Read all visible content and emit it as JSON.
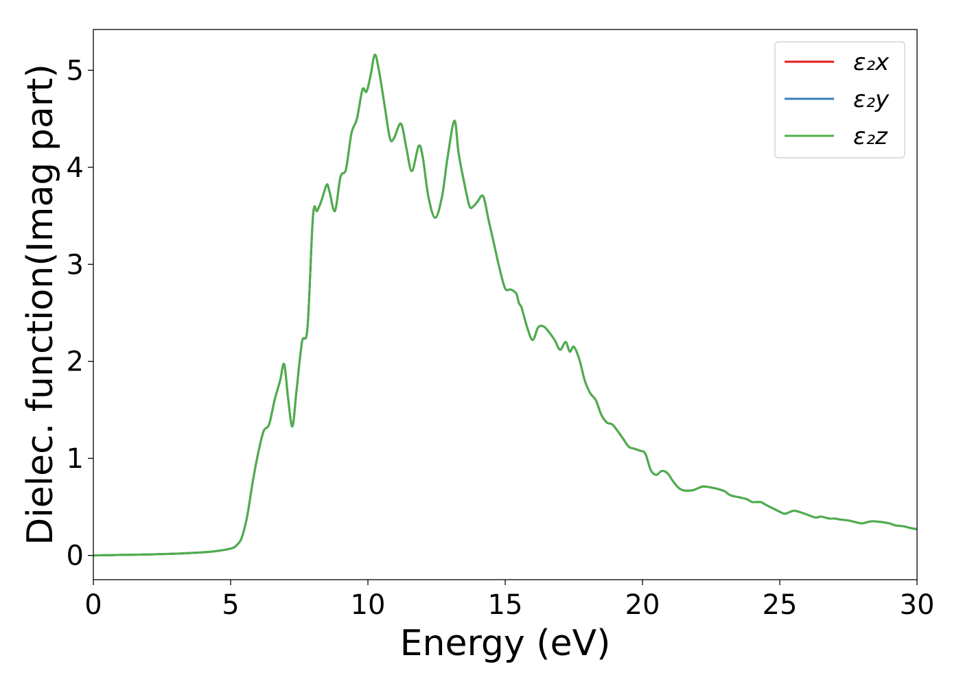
{
  "chart_data": {
    "type": "line",
    "title": "",
    "xlabel": "Energy (eV)",
    "ylabel": "Dielec. function(Imag part)",
    "xlim": [
      0,
      30
    ],
    "ylim": [
      -0.25,
      5.42
    ],
    "xticks": [
      0,
      5,
      10,
      15,
      20,
      25,
      30
    ],
    "yticks": [
      0,
      1,
      2,
      3,
      4,
      5
    ],
    "xtick_labels": [
      "0",
      "5",
      "10",
      "15",
      "20",
      "25",
      "30"
    ],
    "ytick_labels": [
      "0",
      "1",
      "2",
      "3",
      "4",
      "5"
    ],
    "grid": false,
    "legend_position": "top-right",
    "x": [
      0,
      1,
      2,
      3,
      4,
      4.5,
      5,
      5.2,
      5.4,
      5.6,
      5.8,
      6.0,
      6.2,
      6.4,
      6.6,
      6.8,
      6.95,
      7.1,
      7.25,
      7.4,
      7.6,
      7.8,
      8.0,
      8.15,
      8.3,
      8.5,
      8.6,
      8.8,
      9.0,
      9.2,
      9.4,
      9.6,
      9.8,
      9.95,
      10.1,
      10.25,
      10.4,
      10.6,
      10.8,
      10.95,
      11.2,
      11.4,
      11.6,
      11.85,
      12.0,
      12.2,
      12.45,
      12.7,
      12.9,
      13.15,
      13.3,
      13.5,
      13.7,
      13.85,
      14.0,
      14.2,
      14.4,
      14.6,
      14.8,
      15.0,
      15.2,
      15.4,
      15.5,
      15.6,
      15.8,
      16.0,
      16.2,
      16.4,
      16.6,
      16.8,
      17.0,
      17.2,
      17.35,
      17.5,
      17.7,
      17.9,
      18.1,
      18.3,
      18.5,
      18.7,
      18.9,
      19.1,
      19.3,
      19.5,
      19.7,
      19.9,
      20.1,
      20.3,
      20.5,
      20.7,
      20.9,
      21.1,
      21.3,
      21.5,
      21.8,
      22.0,
      22.2,
      22.5,
      22.8,
      23.0,
      23.2,
      23.5,
      23.8,
      24.0,
      24.3,
      24.5,
      25.0,
      25.2,
      25.5,
      25.8,
      26.0,
      26.3,
      26.5,
      26.8,
      27.0,
      27.2,
      27.5,
      27.8,
      28.0,
      28.3,
      28.5,
      28.8,
      29.0,
      29.2,
      29.5,
      29.8,
      30.0
    ],
    "series": [
      {
        "name": "ε₂x",
        "color": "#e41a1c"
      },
      {
        "name": "ε₂y",
        "color": "#377eb8"
      },
      {
        "name": "ε₂z",
        "color": "#4daf4a"
      }
    ],
    "values": [
      0.0,
      0.005,
      0.01,
      0.018,
      0.032,
      0.045,
      0.07,
      0.1,
      0.18,
      0.4,
      0.75,
      1.05,
      1.28,
      1.35,
      1.6,
      1.8,
      1.97,
      1.6,
      1.33,
      1.7,
      2.2,
      2.35,
      3.5,
      3.55,
      3.65,
      3.82,
      3.75,
      3.55,
      3.9,
      3.98,
      4.35,
      4.5,
      4.8,
      4.78,
      4.95,
      5.16,
      5.0,
      4.65,
      4.3,
      4.3,
      4.45,
      4.2,
      3.96,
      4.22,
      4.1,
      3.7,
      3.48,
      3.7,
      4.1,
      4.48,
      4.15,
      3.85,
      3.6,
      3.6,
      3.65,
      3.7,
      3.45,
      3.2,
      2.95,
      2.75,
      2.74,
      2.7,
      2.6,
      2.55,
      2.35,
      2.22,
      2.35,
      2.36,
      2.3,
      2.22,
      2.12,
      2.2,
      2.1,
      2.15,
      2.02,
      1.8,
      1.67,
      1.6,
      1.45,
      1.37,
      1.35,
      1.28,
      1.2,
      1.12,
      1.1,
      1.08,
      1.05,
      0.88,
      0.83,
      0.87,
      0.85,
      0.77,
      0.7,
      0.67,
      0.67,
      0.69,
      0.71,
      0.7,
      0.68,
      0.66,
      0.62,
      0.6,
      0.58,
      0.55,
      0.55,
      0.52,
      0.45,
      0.43,
      0.46,
      0.44,
      0.42,
      0.39,
      0.4,
      0.38,
      0.38,
      0.37,
      0.36,
      0.34,
      0.33,
      0.35,
      0.35,
      0.34,
      0.33,
      0.31,
      0.3,
      0.28,
      0.27
    ]
  }
}
